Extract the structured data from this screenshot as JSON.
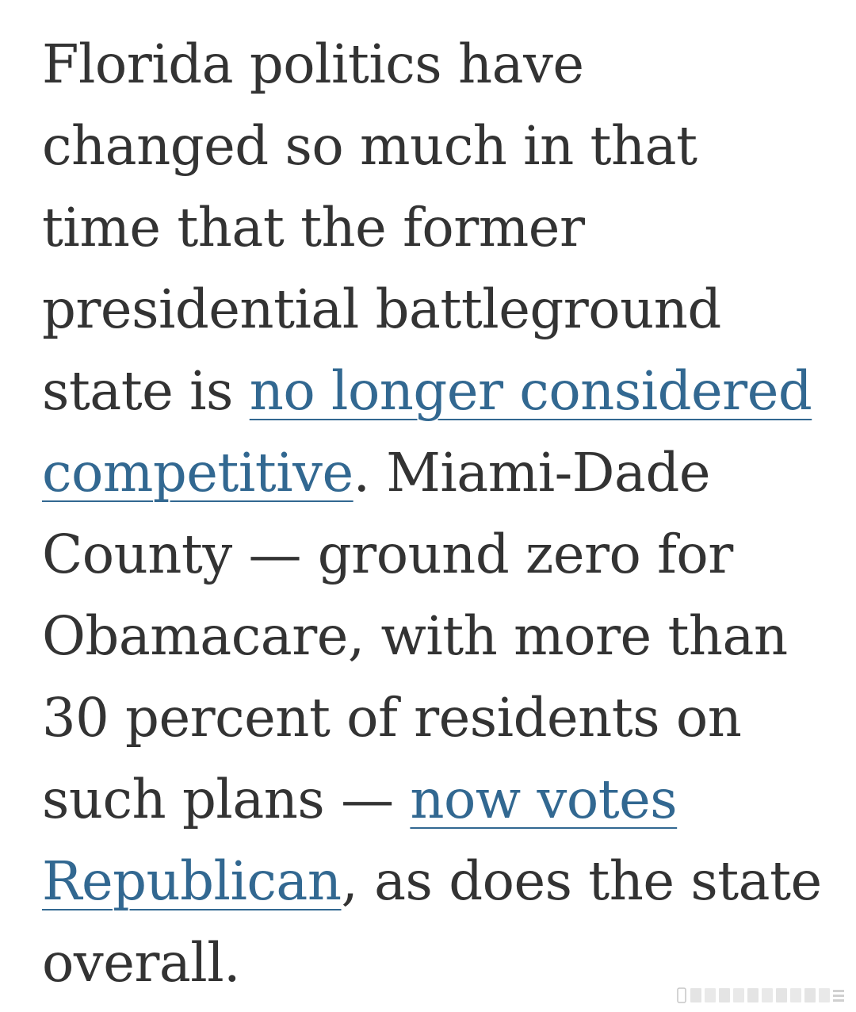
{
  "article": {
    "lines": [
      {
        "parts": [
          {
            "text": "Florida politics have"
          }
        ]
      },
      {
        "parts": [
          {
            "text": "changed so much in that"
          }
        ]
      },
      {
        "parts": [
          {
            "text": "time that the former"
          }
        ]
      },
      {
        "parts": [
          {
            "text": "presidential battleground"
          }
        ]
      },
      {
        "parts": [
          {
            "text": "state is "
          },
          {
            "text": "no longer considered",
            "link": true
          }
        ]
      },
      {
        "parts": [
          {
            "text": "competitive",
            "link": true
          },
          {
            "text": ". Miami-Dade"
          }
        ]
      },
      {
        "parts": [
          {
            "text": "County — ground zero for"
          }
        ]
      },
      {
        "parts": [
          {
            "text": "Obamacare, with more than"
          }
        ]
      },
      {
        "parts": [
          {
            "text": "30 percent of residents on"
          }
        ]
      },
      {
        "parts": [
          {
            "text": "such plans — "
          },
          {
            "text": "now votes",
            "link": true
          }
        ]
      },
      {
        "parts": [
          {
            "text": "Republican",
            "link": true
          },
          {
            "text": ", as does the state"
          }
        ]
      },
      {
        "parts": [
          {
            "text": "overall."
          }
        ]
      }
    ]
  },
  "colors": {
    "text": "#333333",
    "link": "#326891",
    "background": "#ffffff"
  },
  "watermark": {
    "icon": "image-watermark-icon"
  }
}
